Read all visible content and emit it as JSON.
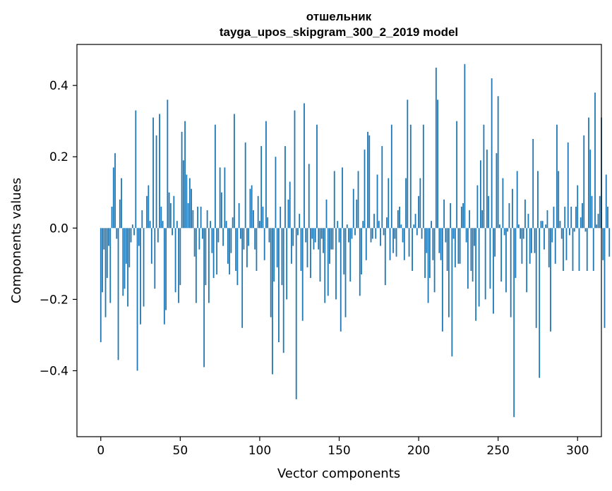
{
  "chart_data": {
    "type": "bar",
    "title": "отшельник\ntayga_upos_skipgram_300_2_2019 model",
    "title_lines": [
      "отшельник",
      "tayga_upos_skipgram_300_2_2019 model"
    ],
    "xlabel": "Vector components",
    "ylabel": "Components values",
    "xlim": [
      -15,
      315
    ],
    "ylim": [
      -0.585,
      0.515
    ],
    "x_ticks": [
      0,
      50,
      100,
      150,
      200,
      250,
      300
    ],
    "x_tick_labels": [
      "0",
      "50",
      "100",
      "150",
      "200",
      "250",
      "300"
    ],
    "y_ticks": [
      -0.4,
      -0.2,
      0.0,
      0.2,
      0.4
    ],
    "y_tick_labels": [
      "−0.4",
      "−0.2",
      "0.0",
      "0.2",
      "0.4"
    ],
    "grid": false,
    "bar_color": "#1f77b4",
    "x_start": 0,
    "values": [
      -0.32,
      -0.18,
      -0.06,
      -0.25,
      -0.14,
      -0.05,
      -0.21,
      0.06,
      0.17,
      0.21,
      -0.03,
      -0.37,
      0.08,
      0.14,
      -0.19,
      -0.17,
      -0.1,
      -0.22,
      -0.11,
      -0.04,
      0.01,
      -0.02,
      0.33,
      -0.4,
      -0.05,
      -0.27,
      0.05,
      -0.22,
      0.0,
      0.09,
      0.12,
      0.02,
      -0.1,
      0.31,
      -0.17,
      0.26,
      -0.04,
      0.32,
      0.06,
      0.02,
      -0.27,
      -0.23,
      0.36,
      0.1,
      0.07,
      -0.02,
      0.09,
      -0.18,
      0.02,
      -0.21,
      -0.16,
      0.27,
      0.19,
      0.3,
      0.15,
      0.07,
      0.14,
      0.11,
      0.05,
      -0.08,
      -0.21,
      0.06,
      -0.06,
      0.06,
      -0.03,
      -0.39,
      -0.16,
      0.05,
      -0.21,
      0.02,
      -0.07,
      -0.14,
      0.29,
      -0.13,
      -0.04,
      0.17,
      0.1,
      -0.05,
      0.17,
      0.02,
      -0.1,
      -0.13,
      -0.07,
      0.03,
      0.32,
      -0.12,
      -0.16,
      0.07,
      -0.03,
      -0.28,
      -0.06,
      0.24,
      -0.11,
      -0.05,
      0.11,
      0.12,
      0.05,
      -0.06,
      -0.12,
      0.09,
      0.02,
      0.23,
      0.06,
      -0.09,
      0.3,
      0.03,
      -0.04,
      -0.25,
      -0.41,
      -0.15,
      0.2,
      -0.11,
      -0.32,
      0.06,
      -0.16,
      -0.35,
      0.23,
      -0.2,
      0.08,
      0.13,
      -0.1,
      -0.05,
      0.33,
      -0.48,
      -0.02,
      0.04,
      -0.12,
      -0.26,
      0.35,
      -0.04,
      -0.11,
      0.18,
      -0.14,
      -0.03,
      -0.06,
      -0.04,
      0.29,
      -0.06,
      -0.15,
      -0.03,
      -0.07,
      -0.21,
      0.08,
      -0.19,
      -0.1,
      -0.06,
      -0.06,
      0.16,
      -0.2,
      0.02,
      -0.04,
      -0.29,
      0.17,
      -0.13,
      -0.25,
      0.01,
      -0.04,
      -0.15,
      -0.03,
      0.11,
      -0.02,
      0.08,
      0.16,
      -0.19,
      -0.13,
      0.02,
      0.22,
      -0.09,
      0.27,
      0.26,
      -0.04,
      -0.03,
      0.04,
      -0.03,
      0.15,
      0.02,
      -0.05,
      0.23,
      -0.02,
      -0.16,
      0.03,
      0.14,
      -0.09,
      0.29,
      -0.07,
      -0.03,
      -0.08,
      0.05,
      0.06,
      0.01,
      -0.04,
      -0.09,
      0.14,
      0.36,
      -0.08,
      0.29,
      -0.12,
      0.01,
      0.04,
      -0.02,
      0.09,
      0.14,
      -0.03,
      0.29,
      -0.14,
      -0.07,
      -0.21,
      -0.14,
      0.02,
      -0.09,
      -0.18,
      0.45,
      0.36,
      -0.07,
      -0.09,
      -0.29,
      0.08,
      -0.04,
      -0.12,
      -0.25,
      0.07,
      -0.36,
      -0.03,
      -0.11,
      0.3,
      -0.1,
      -0.1,
      0.06,
      0.07,
      0.46,
      -0.04,
      -0.17,
      0.05,
      -0.12,
      -0.15,
      -0.05,
      -0.26,
      0.12,
      -0.22,
      0.19,
      0.05,
      0.29,
      -0.2,
      0.22,
      0.09,
      -0.17,
      0.42,
      -0.24,
      -0.08,
      0.21,
      0.37,
      0.01,
      -0.15,
      0.14,
      -0.02,
      -0.18,
      -0.01,
      0.07,
      -0.25,
      0.11,
      -0.53,
      -0.14,
      0.16,
      0.01,
      -0.03,
      -0.1,
      -0.03,
      0.08,
      -0.18,
      0.04,
      -0.1,
      -0.07,
      0.25,
      -0.07,
      -0.28,
      0.16,
      -0.42,
      0.02,
      0.02,
      -0.06,
      0.01,
      0.05,
      -0.11,
      -0.29,
      -0.04,
      0.06,
      -0.1,
      0.29,
      0.16,
      0.02,
      -0.03,
      -0.12,
      0.06,
      -0.09,
      0.24,
      -0.02,
      0.06,
      -0.12,
      -0.01,
      0.06,
      0.12,
      -0.12,
      0.03,
      0.07,
      0.26,
      -0.01,
      -0.12,
      0.31,
      0.22,
      0.09,
      -0.12,
      0.38,
      0.01,
      0.04,
      0.09,
      0.31,
      -0.09,
      -0.28,
      0.15,
      0.06,
      -0.08
    ]
  }
}
